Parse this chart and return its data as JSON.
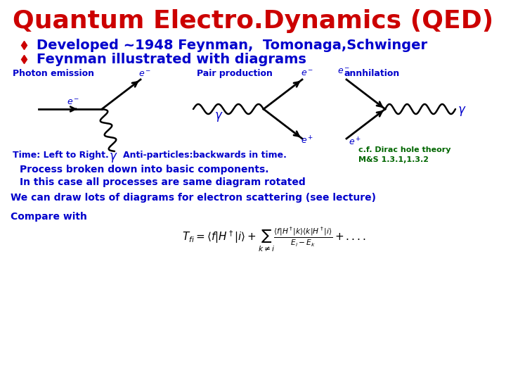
{
  "title": "Quantum Electro.Dynamics (QED)",
  "title_color": "#CC0000",
  "title_fontsize": 26,
  "bullet_color": "#CC0000",
  "bullet1": "Developed ~1948 Feynman,  Tomonaga,Schwinger",
  "bullet2": "Feynman illustrated with diagrams",
  "bullet_fontsize": 14,
  "diagram_color": "#000000",
  "label_color": "#0000CC",
  "label_fontsize": 9,
  "text_color": "#0000CC",
  "green_color": "#006600",
  "background": "#FFFFFF",
  "diag1_label": "Photon emission",
  "diag1_elabel": "e",
  "diag2_label": "Pair production",
  "diag3_label": "annhilation",
  "gamma": "γ",
  "time_text": "Time: Left to Right.",
  "anti_text": "Anti-particles:backwards in time.",
  "cf_text": "c.f. Dirac hole theory\nM&S 1.3.1,1.3.2",
  "process1": "Process broken down into basic components.",
  "process2": "In this case all processes are same diagram rotated",
  "scatter": "We can draw lots of diagrams for electron scattering (see lecture)",
  "compare": "Compare with"
}
